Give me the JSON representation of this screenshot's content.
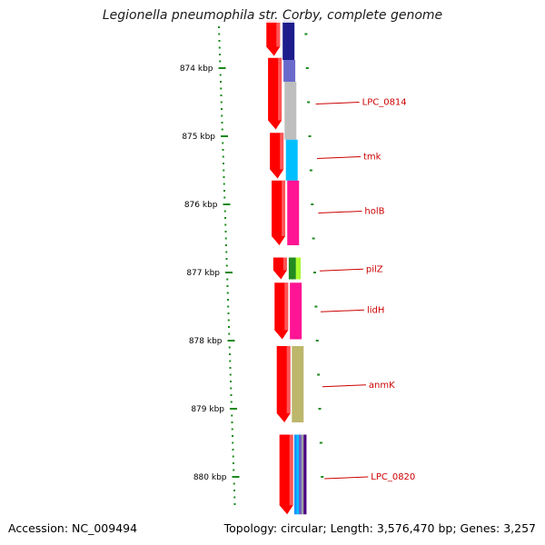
{
  "title": "Legionella pneumophila str. Corby, complete genome",
  "accession_text": "Accession: NC_009494",
  "summary_text": "Topology: circular; Length: 3,576,470 bp; Genes: 3,257",
  "colors": {
    "backbone": "#7a7a7a",
    "tick": "#1a8a1a",
    "cds": "#ff0000",
    "label": "#cc0000"
  },
  "ruler": {
    "unit": "kbp",
    "ticks": [
      {
        "kbp": 874,
        "label": "874 kbp"
      },
      {
        "kbp": 875,
        "label": "875 kbp"
      },
      {
        "kbp": 876,
        "label": "876 kbp"
      },
      {
        "kbp": 877,
        "label": "877 kbp"
      },
      {
        "kbp": 878,
        "label": "878 kbp"
      },
      {
        "kbp": 879,
        "label": "879 kbp"
      },
      {
        "kbp": 880,
        "label": "880 kbp"
      }
    ]
  },
  "cds_features": [
    {
      "start_kbp": 873.3,
      "end_kbp": 873.82
    },
    {
      "start_kbp": 873.85,
      "end_kbp": 874.9
    },
    {
      "start_kbp": 874.95,
      "end_kbp": 875.62
    },
    {
      "start_kbp": 875.65,
      "end_kbp": 876.6
    },
    {
      "start_kbp": 876.78,
      "end_kbp": 877.1
    },
    {
      "start_kbp": 877.15,
      "end_kbp": 877.98
    },
    {
      "start_kbp": 878.08,
      "end_kbp": 879.2
    },
    {
      "start_kbp": 879.38,
      "end_kbp": 880.55
    }
  ],
  "cog_features": [
    {
      "start_kbp": 873.3,
      "end_kbp": 873.88,
      "color": "#1c1c8c"
    },
    {
      "start_kbp": 873.88,
      "end_kbp": 874.2,
      "color": "#6a6acd"
    },
    {
      "start_kbp": 874.2,
      "end_kbp": 875.05,
      "color": "#bebebe"
    },
    {
      "start_kbp": 875.05,
      "end_kbp": 875.65,
      "color": "#00bfff"
    },
    {
      "start_kbp": 875.65,
      "end_kbp": 876.6,
      "color": "#ff1493"
    },
    {
      "start_kbp": 876.78,
      "end_kbp": 877.1,
      "color": "#228b22",
      "accent": "#adff2f"
    },
    {
      "start_kbp": 877.15,
      "end_kbp": 877.98,
      "color": "#ff1493"
    },
    {
      "start_kbp": 878.08,
      "end_kbp": 879.2,
      "color": "#bdb76b"
    },
    {
      "start_kbp": 879.38,
      "end_kbp": 880.55,
      "color": "#4a4a8a",
      "striped": true
    }
  ],
  "gene_labels": [
    {
      "name": "LPC_0814",
      "at_kbp": 874.5
    },
    {
      "name": "tmk",
      "at_kbp": 875.3
    },
    {
      "name": "holB",
      "at_kbp": 876.1
    },
    {
      "name": "pilZ",
      "at_kbp": 876.95
    },
    {
      "name": "lidH",
      "at_kbp": 877.55
    },
    {
      "name": "anmK",
      "at_kbp": 878.65
    },
    {
      "name": "LPC_0820",
      "at_kbp": 880.0
    }
  ]
}
